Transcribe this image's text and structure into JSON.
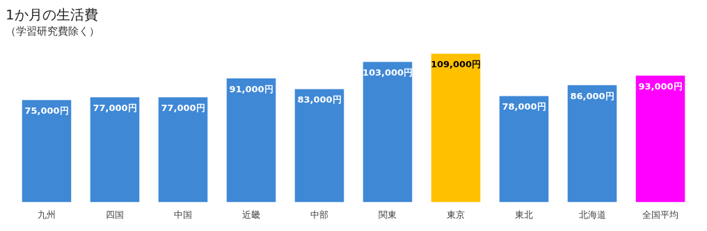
{
  "chart_data": {
    "type": "bar",
    "title": "1か月の生活費",
    "subtitle": "（学習研究費除く）",
    "categories": [
      "九州",
      "四国",
      "中国",
      "近畿",
      "中部",
      "関東",
      "東京",
      "東北",
      "北海道",
      "全国平均"
    ],
    "values": [
      75000,
      77000,
      77000,
      91000,
      83000,
      103000,
      109000,
      78000,
      86000,
      93000
    ],
    "value_labels": [
      "75,000円",
      "77,000円",
      "77,000円",
      "91,000円",
      "83,000円",
      "103,000円",
      "109,000円",
      "78,000円",
      "86,000円",
      "93,000円"
    ],
    "colors": [
      "#3f88d6",
      "#3f88d6",
      "#3f88d6",
      "#3f88d6",
      "#3f88d6",
      "#3f88d6",
      "#ffc000",
      "#3f88d6",
      "#3f88d6",
      "#ff00ff"
    ],
    "grid": false,
    "legend": false
  }
}
